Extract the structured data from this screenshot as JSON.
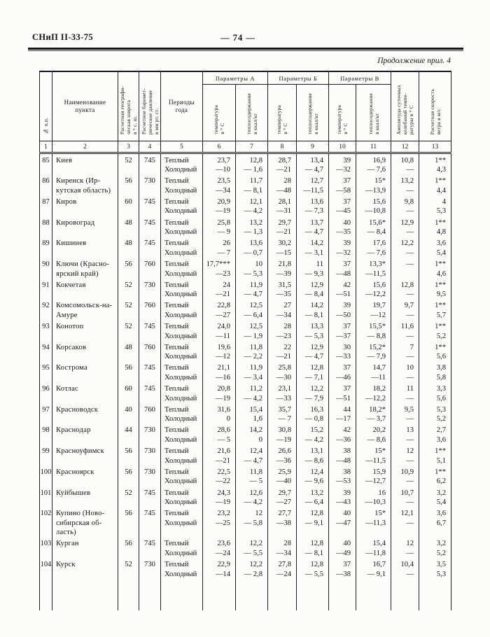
{
  "page": {
    "doc_code": "СНиП II-33-75",
    "page_number": "— 74 —",
    "continuation": "Продолжение прил. 4"
  },
  "table": {
    "headers": {
      "num": "№ п.п.",
      "name": "Наименование\nпункта",
      "latitude": "Расчетная географи-\nческая широта\nв ° с. ш.",
      "pressure": "Расчетное баромет-\nрическое давление\nв мм рт. ст.",
      "period": "Периоды\nгода",
      "group_a": "Параметры А",
      "group_b": "Параметры Б",
      "group_v": "Параметры В",
      "temp": "температура\nв ° С",
      "heat": "теплосодержание\nв ккал/кг",
      "amplitude": "Амплитуда суточных\nколебаний темпе-\nратуры в ° С",
      "wind": "Расчетная скорость\nветра в м/с"
    },
    "col_numbers": [
      "1",
      "2",
      "3",
      "4",
      "5",
      "6",
      "7",
      "8",
      "9",
      "10",
      "11",
      "12",
      "13"
    ],
    "period_labels": {
      "warm": "Теплый",
      "cold": "Холодный"
    },
    "rows": [
      {
        "num": "85",
        "name": "Киев",
        "lat": "52",
        "press": "745",
        "warm": [
          "23,7",
          "12,8",
          "28,7",
          "13,4",
          "39",
          "16,9",
          "10,8",
          "1**"
        ],
        "cold": [
          "—10",
          "— 1,6",
          "—21",
          "— 4,7",
          "—32",
          "— 7,6",
          "—",
          "4,3"
        ]
      },
      {
        "num": "86",
        "name": "Киренск (Ир-\nкутская область)",
        "lat": "56",
        "press": "730",
        "warm": [
          "23,5",
          "11,7",
          "28",
          "12,7",
          "37",
          "15*",
          "13,2",
          "1**"
        ],
        "cold": [
          "—34",
          "— 8,1",
          "—48",
          "—11,5",
          "—58",
          "—13,9",
          "—",
          "4,4"
        ]
      },
      {
        "num": "87",
        "name": "Киров",
        "lat": "60",
        "press": "745",
        "warm": [
          "20,9",
          "12,1",
          "28,1",
          "13,6",
          "37",
          "15,6",
          "9,8",
          "4"
        ],
        "cold": [
          "—19",
          "— 4,2",
          "—31",
          "— 7,3",
          "—45",
          "—10,8",
          "—",
          "5,3"
        ]
      },
      {
        "num": "88",
        "name": "Кировоград",
        "lat": "48",
        "press": "745",
        "warm": [
          "25,8",
          "13,2",
          "29,7",
          "13,7",
          "40",
          "15,6*",
          "12,9",
          "1**"
        ],
        "cold": [
          "— 9",
          "— 1,3",
          "—21",
          "— 4,7",
          "—35",
          "— 8,4",
          "—",
          "4,8"
        ]
      },
      {
        "num": "89",
        "name": "Кишинев",
        "lat": "48",
        "press": "745",
        "warm": [
          "26",
          "13,6",
          "30,2",
          "14,2",
          "39",
          "17,6",
          "12,2",
          "3,6"
        ],
        "cold": [
          "— 7",
          "— 0,7",
          "—15",
          "— 3,1",
          "—32",
          "— 7,6",
          "—",
          "5,4"
        ]
      },
      {
        "num": "90",
        "name": "Ключи (Красно-\nярский край)",
        "lat": "56",
        "press": "760",
        "warm": [
          "17,7***",
          "10",
          "21,8",
          "11",
          "37",
          "13,3*",
          "—",
          "1**"
        ],
        "cold": [
          "—23",
          "— 5,3",
          "—39",
          "— 9,3",
          "—48",
          "—11,5",
          "",
          "4,6"
        ]
      },
      {
        "num": "91",
        "name": "Кокчетав",
        "lat": "52",
        "press": "730",
        "warm": [
          "24",
          "11,9",
          "31,5",
          "12,9",
          "42",
          "15,6",
          "12,8",
          "1**"
        ],
        "cold": [
          "—21",
          "— 4,7",
          "—35",
          "— 8,4",
          "—51",
          "—12,2",
          "—",
          "9,5"
        ]
      },
      {
        "num": "92",
        "name": "Комсомольск-на-\nАмуре",
        "lat": "52",
        "press": "760",
        "warm": [
          "22,8",
          "12,5",
          "27",
          "14,2",
          "39",
          "19,7",
          "9,7",
          "1**"
        ],
        "cold": [
          "—27",
          "— 6,4",
          "—34",
          "— 8,1",
          "—50",
          "—12",
          "—",
          "5,7"
        ]
      },
      {
        "num": "93",
        "name": "Конотоп",
        "lat": "52",
        "press": "745",
        "warm": [
          "24,0",
          "12,5",
          "28",
          "13,3",
          "37",
          "15,5*",
          "11,6",
          "1**"
        ],
        "cold": [
          "—11",
          "— 1,9",
          "—23",
          "— 5,3",
          "—37",
          "— 8,8",
          "—",
          "5,2"
        ]
      },
      {
        "num": "94",
        "name": "Корсаков",
        "lat": "48",
        "press": "760",
        "warm": [
          "19,6",
          "11,8",
          "22",
          "12,9",
          "30",
          "15,2*",
          "7",
          "1**"
        ],
        "cold": [
          "—12",
          "— 2,2",
          "—21",
          "— 4,7",
          "—33",
          "— 7,9",
          "—",
          "5,6"
        ]
      },
      {
        "num": "95",
        "name": "Кострома",
        "lat": "56",
        "press": "745",
        "warm": [
          "21,1",
          "11,9",
          "25,8",
          "12,8",
          "37",
          "14,7",
          "10",
          "3,8"
        ],
        "cold": [
          "—16",
          "— 3,4",
          "—30",
          "— 7,1",
          "—46",
          "—11",
          "—",
          "5,8"
        ]
      },
      {
        "num": "96",
        "name": "Котлас",
        "lat": "60",
        "press": "745",
        "warm": [
          "20,8",
          "11,2",
          "23,1",
          "12,2",
          "37",
          "18,2",
          "11",
          "3,3"
        ],
        "cold": [
          "—19",
          "— 4,2",
          "—33",
          "— 7,9",
          "—51",
          "—12,2",
          "—",
          "5,6"
        ]
      },
      {
        "num": "97",
        "name": "Красноводск",
        "lat": "40",
        "press": "760",
        "warm": [
          "31,6",
          "15,4",
          "35,7",
          "16,3",
          "44",
          "18,2*",
          "9,5",
          "5,3"
        ],
        "cold": [
          "0",
          "1,6",
          "— 7",
          "— 0,8",
          "—17",
          "— 3,7",
          "—",
          "5,2"
        ]
      },
      {
        "num": "98",
        "name": "Краснодар",
        "lat": "44",
        "press": "730",
        "warm": [
          "28,6",
          "14,2",
          "30,8",
          "15,2",
          "42",
          "20,2",
          "13",
          "2,7"
        ],
        "cold": [
          "— 5",
          "0",
          "—19",
          "— 4,2",
          "—36",
          "— 8,6",
          "—",
          "3,6"
        ]
      },
      {
        "num": "99",
        "name": "Красноуфимск",
        "lat": "56",
        "press": "730",
        "warm": [
          "21,6",
          "12,4",
          "26,6",
          "13,1",
          "38",
          "15*",
          "12",
          "1**"
        ],
        "cold": [
          "—21",
          "— 4,7",
          "—36",
          "— 8,6",
          "—48",
          "—11,5",
          "—",
          "5,1"
        ]
      },
      {
        "num": "100",
        "name": "Красноярск",
        "lat": "56",
        "press": "730",
        "warm": [
          "22,5",
          "11,8",
          "25,9",
          "12,4",
          "38",
          "15,9",
          "10,9",
          "1**"
        ],
        "cold": [
          "—22",
          "— 5",
          "—40",
          "— 9,6",
          "—53",
          "—12,7",
          "—",
          "6,2"
        ]
      },
      {
        "num": "101",
        "name": "Куйбышев",
        "lat": "52",
        "press": "745",
        "warm": [
          "24,3",
          "12,6",
          "29,7",
          "13,2",
          "39",
          "16",
          "10,7",
          "3,2"
        ],
        "cold": [
          "—19",
          "— 4,2",
          "—27",
          "— 6,4",
          "—43",
          "—10,3",
          "—",
          "5,4"
        ]
      },
      {
        "num": "102",
        "name": "Купино (Ново-\nсибирская об-\nласть)",
        "lat": "56",
        "press": "745",
        "warm": [
          "23,2",
          "12",
          "27,7",
          "12,8",
          "40",
          "15*",
          "12,1",
          "3,6"
        ],
        "cold": [
          "—25",
          "— 5,8",
          "—38",
          "— 9,1",
          "—47",
          "—11,3",
          "—",
          "6,7"
        ]
      },
      {
        "num": "103",
        "name": "Курган",
        "lat": "56",
        "press": "745",
        "warm": [
          "23,6",
          "12,2",
          "28",
          "12,8",
          "40",
          "15,4",
          "12",
          "3,2"
        ],
        "cold": [
          "—24",
          "— 5,5",
          "—34",
          "— 8,1",
          "—49",
          "—11,8",
          "—",
          "5,2"
        ]
      },
      {
        "num": "104",
        "name": "Курск",
        "lat": "52",
        "press": "730",
        "warm": [
          "22,9",
          "12,2",
          "27,8",
          "12,8",
          "37",
          "16,7",
          "10,4",
          "3,5"
        ],
        "cold": [
          "—14",
          "— 2,8",
          "—24",
          "— 5,5",
          "—38",
          "— 9,1",
          "—",
          "5,3"
        ]
      }
    ]
  }
}
